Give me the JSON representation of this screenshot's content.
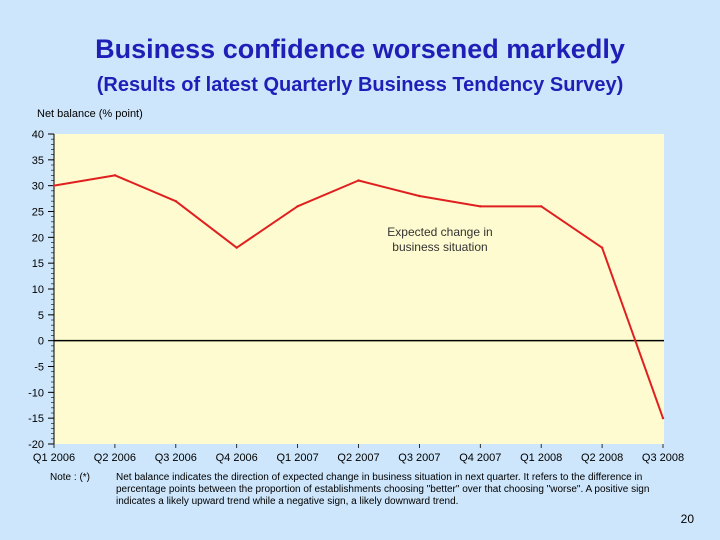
{
  "slide": {
    "title": "Business confidence worsened markedly",
    "subtitle": "(Results of latest Quarterly Business Tendency Survey)",
    "note_label": "Note :  (*)",
    "note_text": "Net balance indicates the direction of expected change in business situation in next quarter.  It refers to the difference in percentage points between the proportion of establishments choosing \"better\" over that choosing \"worse\".  A positive sign indicates a likely upward trend while a negative sign, a likely downward trend.",
    "page_number": "20"
  },
  "chart_data": {
    "type": "line",
    "title": "Business confidence worsened markedly",
    "ylabel": "Net balance (% point)",
    "xlabel": "",
    "categories": [
      "Q1 2006",
      "Q2 2006",
      "Q3 2006",
      "Q4 2006",
      "Q1 2007",
      "Q2 2007",
      "Q3 2007",
      "Q4 2007",
      "Q1 2008",
      "Q2 2008",
      "Q3 2008"
    ],
    "series": [
      {
        "name": "Expected change in business situation",
        "values": [
          30,
          32,
          27,
          18,
          26,
          31,
          28,
          26,
          26,
          18,
          -15
        ]
      }
    ],
    "annotation": [
      "Expected change in",
      "business situation"
    ],
    "ylim": [
      -20,
      40
    ],
    "yticks": [
      40,
      35,
      30,
      25,
      20,
      15,
      10,
      5,
      0,
      -5,
      -10,
      -15,
      -20
    ],
    "colors": {
      "line": "#e02020",
      "plot_bg": "#fdfbcf",
      "zero_line": "#000000"
    }
  }
}
